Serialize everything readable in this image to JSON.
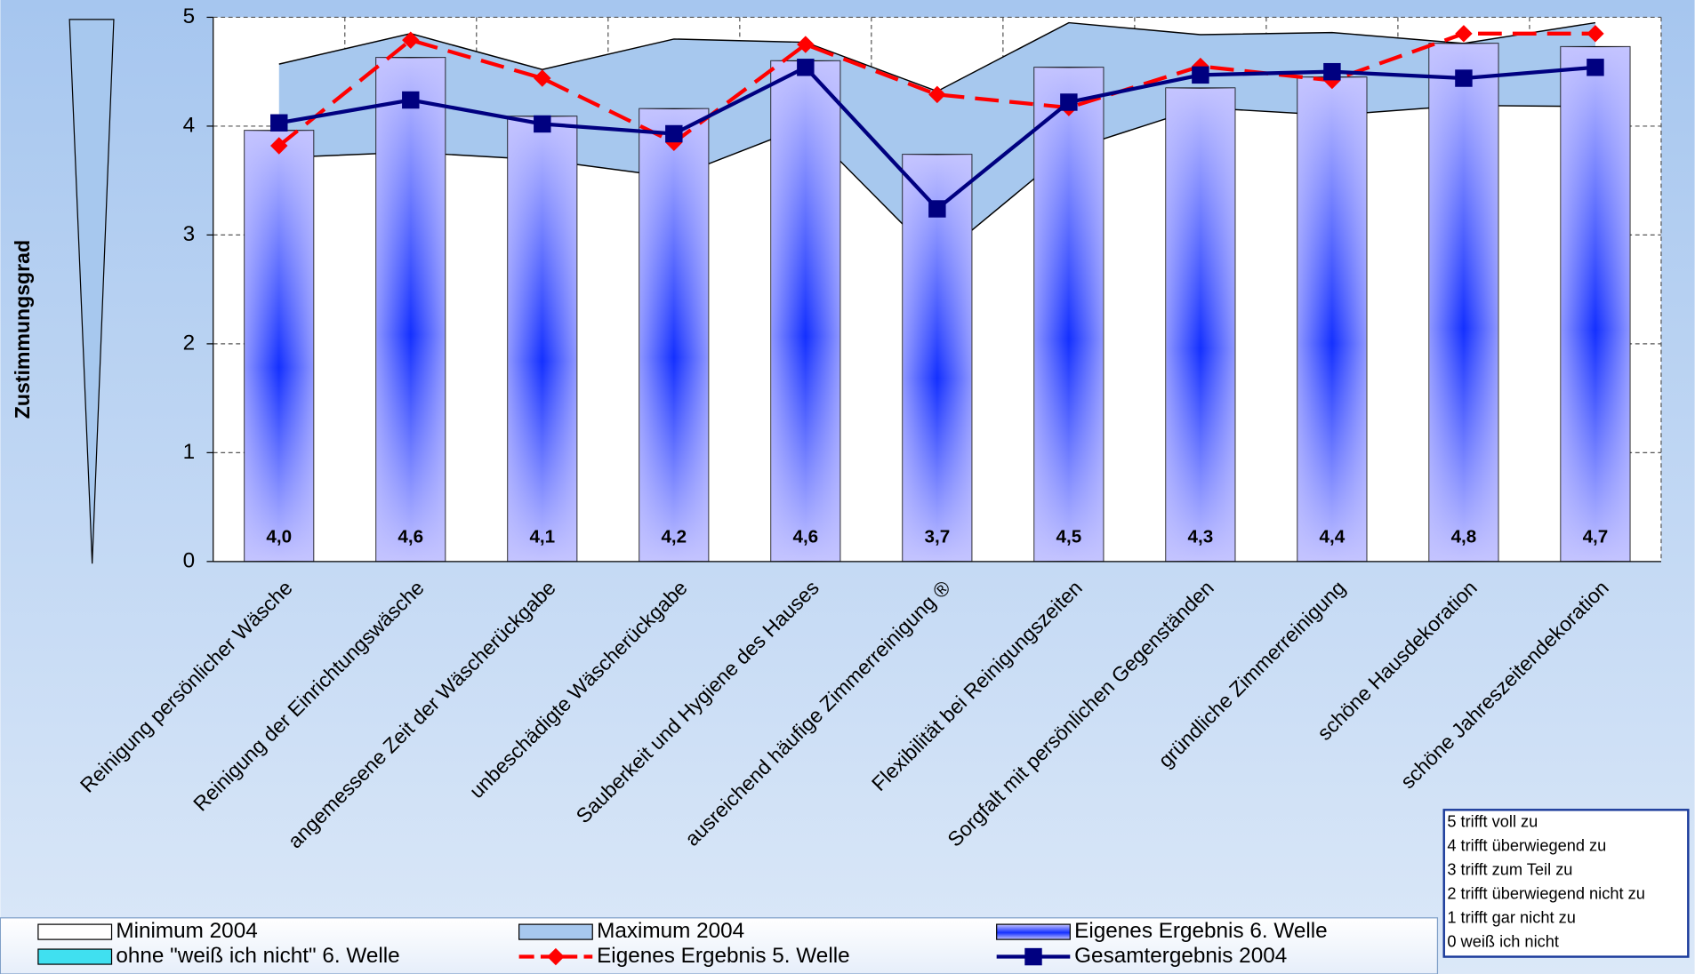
{
  "chart_data": {
    "type": "bar",
    "y_label": "Zustimmungsgrad",
    "categories": [
      "Reinigung persönlicher Wäsche",
      "Reinigung der Einrichtungswäsche",
      "angemessene Zeit der Wäscherückgabe",
      "unbeschädigte Wäscherückgabe",
      "Sauberkeit und Hygiene des Hauses",
      "ausreichend häufige Zimmerreinigung ®",
      "Flexibilität bei Reinigungszeiten",
      "Sorgfalt mit persönlichen Gegenständen",
      "gründliche Zimmerreinigung",
      "schöne Hausdekoration",
      "schöne Jahreszeitendekoration"
    ],
    "ylim": [
      0,
      5
    ],
    "yticks": [
      0,
      1,
      2,
      3,
      4,
      5
    ],
    "grid": true,
    "series": [
      {
        "name": "Minimum 2004",
        "kind": "area",
        "color": "#ffffff",
        "values": [
          3.71,
          3.76,
          3.69,
          3.53,
          4.0,
          2.78,
          3.78,
          4.17,
          4.1,
          4.19,
          4.18
        ]
      },
      {
        "name": "Maximum 2004",
        "kind": "area",
        "color": "#a7c8ee",
        "values": [
          4.57,
          4.85,
          4.52,
          4.8,
          4.77,
          4.32,
          4.95,
          4.84,
          4.86,
          4.76,
          4.95
        ]
      },
      {
        "name": "Eigenes Ergebnis 6. Welle",
        "kind": "bar",
        "color": "#1a3cff",
        "values": [
          3.96,
          4.63,
          4.09,
          4.16,
          4.6,
          3.74,
          4.54,
          4.35,
          4.45,
          4.76,
          4.73
        ],
        "value_labels": [
          "4,0",
          "4,6",
          "4,1",
          "4,2",
          "4,6",
          "3,7",
          "4,5",
          "4,3",
          "4,4",
          "4,8",
          "4,7"
        ]
      },
      {
        "name": "Eigenes Ergebnis 5. Welle",
        "kind": "line",
        "color": "#ff0000",
        "marker": "diamond",
        "dashed": true,
        "values": [
          3.82,
          4.79,
          4.44,
          3.85,
          4.75,
          4.29,
          4.17,
          4.55,
          4.42,
          4.85,
          4.85
        ]
      },
      {
        "name": "Gesamtergebnis 2004",
        "kind": "line",
        "color": "#000080",
        "marker": "square",
        "dashed": false,
        "values": [
          4.03,
          4.24,
          4.02,
          3.93,
          4.54,
          3.24,
          4.22,
          4.47,
          4.5,
          4.44,
          4.54
        ]
      }
    ],
    "extra_legend": {
      "name": "ohne \"weiß ich nicht\" 6. Welle",
      "color": "#40e0f0"
    },
    "scale_notes": [
      "5 trifft voll zu",
      "4 trifft überwiegend zu",
      "3 trifft zum Teil zu",
      "2 trifft überwiegend nicht zu",
      "1 trifft gar nicht zu",
      "0 weiß ich nicht"
    ]
  }
}
